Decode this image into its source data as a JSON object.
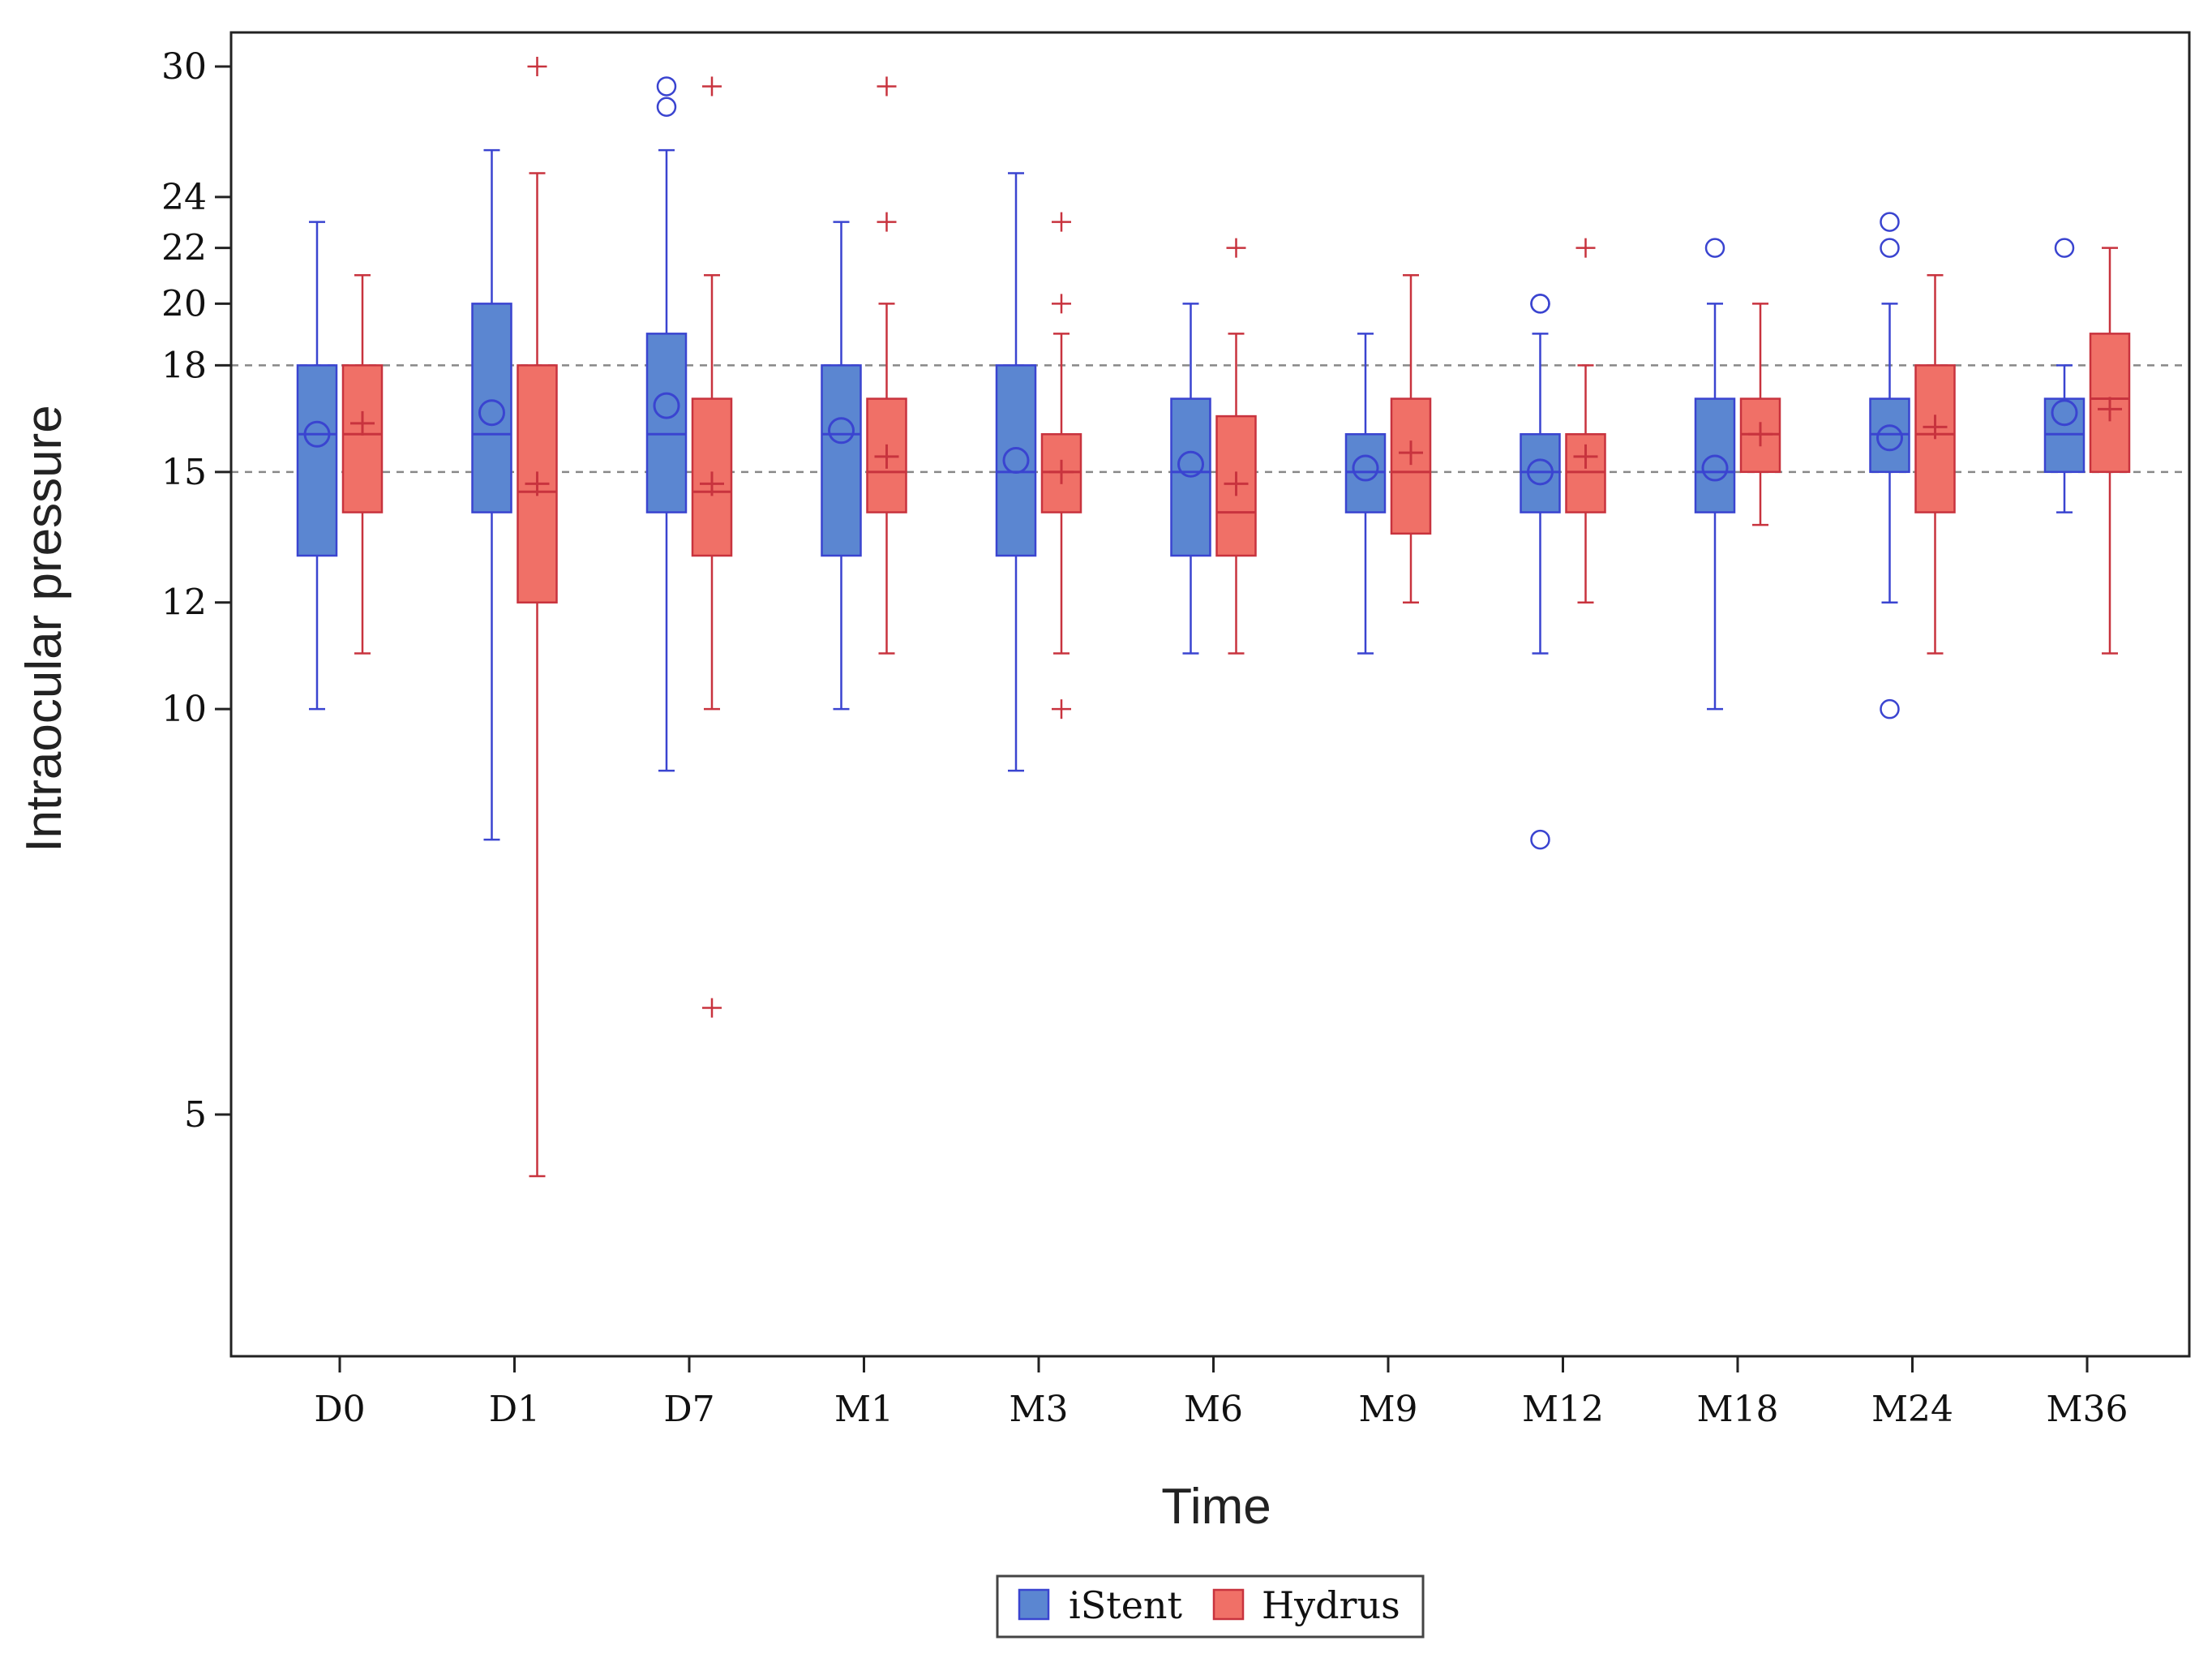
{
  "chart_data": {
    "type": "box",
    "title": "",
    "xlabel": "Time",
    "ylabel": "Intraocular pressure",
    "y_scale": "log",
    "ylim": [
      3,
      30
    ],
    "yticks": [
      5,
      10,
      12,
      15,
      18,
      20,
      22,
      24,
      30
    ],
    "reference_lines": [
      15,
      18
    ],
    "categories": [
      "D0",
      "D1",
      "D7",
      "M1",
      "M3",
      "M6",
      "M9",
      "M12",
      "M18",
      "M24",
      "M36"
    ],
    "legend": {
      "placement": "bottom-center",
      "entries": [
        "iStent",
        "Hydrus"
      ]
    },
    "series": [
      {
        "name": "iStent",
        "color": "#5b86d1",
        "edge_color": "#3a44d0",
        "mean_marker": "circle",
        "outlier_marker": "circle",
        "boxes": [
          {
            "min": 10,
            "q1": 13,
            "median": 16,
            "q3": 18,
            "max": 23,
            "mean": 16,
            "outliers": []
          },
          {
            "min": 8,
            "q1": 14,
            "median": 16,
            "q3": 20,
            "max": 26,
            "mean": 16.6,
            "outliers": []
          },
          {
            "min": 9,
            "q1": 14,
            "median": 16,
            "q3": 19,
            "max": 26,
            "mean": 16.8,
            "outliers": [
              28,
              29
            ]
          },
          {
            "min": 10,
            "q1": 13,
            "median": 16,
            "q3": 18,
            "max": 23,
            "mean": 16.1,
            "outliers": []
          },
          {
            "min": 9,
            "q1": 13,
            "median": 15,
            "q3": 18,
            "max": 25,
            "mean": 15.3,
            "outliers": []
          },
          {
            "min": 11,
            "q1": 13,
            "median": 15,
            "q3": 17,
            "max": 20,
            "mean": 15.2,
            "outliers": []
          },
          {
            "min": 11,
            "q1": 14,
            "median": 15,
            "q3": 16,
            "max": 19,
            "mean": 15.1,
            "outliers": []
          },
          {
            "min": 11,
            "q1": 14,
            "median": 15,
            "q3": 16,
            "max": 19,
            "mean": 15.0,
            "outliers": [
              20,
              20,
              8
            ]
          },
          {
            "min": 10,
            "q1": 14,
            "median": 15,
            "q3": 17,
            "max": 20,
            "mean": 15.1,
            "outliers": [
              22
            ]
          },
          {
            "min": 12,
            "q1": 15,
            "median": 16,
            "q3": 17,
            "max": 20,
            "mean": 15.9,
            "outliers": [
              22,
              23,
              10
            ]
          },
          {
            "min": 14,
            "q1": 15,
            "median": 16,
            "q3": 17,
            "max": 18,
            "mean": 16.6,
            "outliers": [
              22
            ]
          }
        ]
      },
      {
        "name": "Hydrus",
        "color": "#f07067",
        "edge_color": "#c8333e",
        "mean_marker": "plus",
        "outlier_marker": "plus",
        "boxes": [
          {
            "min": 11,
            "q1": 14,
            "median": 16,
            "q3": 18,
            "max": 21,
            "mean": 16.3,
            "outliers": []
          },
          {
            "min": 4.5,
            "q1": 12,
            "median": 14.5,
            "q3": 18,
            "max": 25,
            "mean": 14.7,
            "outliers": [
              30
            ]
          },
          {
            "min": 10,
            "q1": 13,
            "median": 14.5,
            "q3": 17,
            "max": 21,
            "mean": 14.7,
            "outliers": [
              6,
              29
            ]
          },
          {
            "min": 11,
            "q1": 14,
            "median": 15,
            "q3": 17,
            "max": 20,
            "mean": 15.4,
            "outliers": [
              23,
              29
            ]
          },
          {
            "min": 11,
            "q1": 14,
            "median": 15,
            "q3": 16,
            "max": 19,
            "mean": 15.0,
            "outliers": [
              10,
              20,
              23
            ]
          },
          {
            "min": 11,
            "q1": 13,
            "median": 14,
            "q3": 16.5,
            "max": 19,
            "mean": 14.7,
            "outliers": [
              22
            ]
          },
          {
            "min": 12,
            "q1": 13.5,
            "median": 15,
            "q3": 17,
            "max": 21,
            "mean": 15.5,
            "outliers": []
          },
          {
            "min": 12,
            "q1": 14,
            "median": 15,
            "q3": 16,
            "max": 18,
            "mean": 15.4,
            "outliers": [
              22
            ]
          },
          {
            "min": 13.7,
            "q1": 15,
            "median": 16,
            "q3": 17,
            "max": 20,
            "mean": 16.0,
            "outliers": []
          },
          {
            "min": 11,
            "q1": 14,
            "median": 16,
            "q3": 18,
            "max": 21,
            "mean": 16.2,
            "outliers": []
          },
          {
            "min": 11,
            "q1": 15,
            "median": 17,
            "q3": 19,
            "max": 22,
            "mean": 16.7,
            "outliers": []
          }
        ]
      }
    ]
  }
}
